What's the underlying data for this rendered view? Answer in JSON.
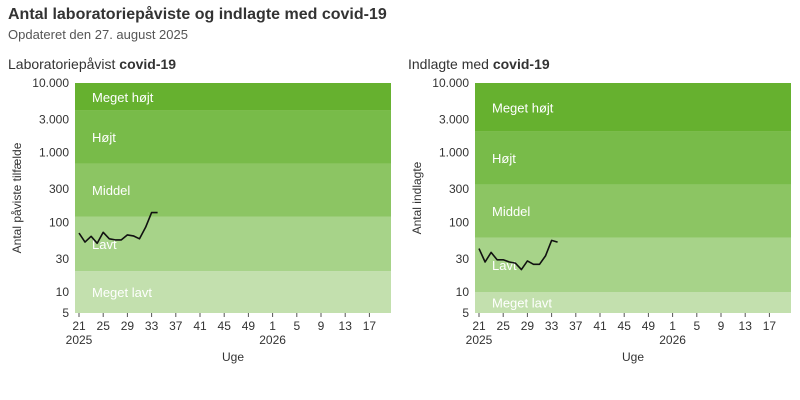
{
  "page": {
    "title": "Antal laboratoriepåviste og indlagte med covid-19",
    "subtitle": "Opdateret den 27. august 2025"
  },
  "colors": {
    "band_meget_hojt": "#66b12f",
    "band_hojt": "#78bb49",
    "band_middel": "#8cc563",
    "band_lavt": "#a7d389",
    "band_meget_lavt": "#c3e0ae",
    "line": "#111111",
    "band_text": "#ffffff"
  },
  "chart_data": [
    {
      "type": "line",
      "title_prefix": "Laboratoriepåvist ",
      "title_bold": "covid-19",
      "xlabel": "Uge",
      "ylabel": "Antal påviste tilfælde",
      "y_scale": "log",
      "ylim": [
        5,
        10000
      ],
      "y_ticks": [
        5,
        10,
        30,
        100,
        300,
        1000,
        3000,
        10000
      ],
      "y_tick_labels": [
        "5",
        "10",
        "30",
        "100",
        "300",
        "1.000",
        "3.000",
        "10.000"
      ],
      "x_ticks": [
        "21",
        "25",
        "29",
        "33",
        "37",
        "41",
        "45",
        "49",
        "1",
        "5",
        "9",
        "13",
        "17"
      ],
      "x_year_labels": [
        {
          "at": "21",
          "label": "2025"
        },
        {
          "at": "1",
          "label": "2026"
        }
      ],
      "bands": [
        {
          "label": "Meget lavt",
          "from": 5,
          "to": 20
        },
        {
          "label": "Lavt",
          "from": 20,
          "to": 120
        },
        {
          "label": "Middel",
          "from": 120,
          "to": 700
        },
        {
          "label": "Højt",
          "from": 700,
          "to": 4000
        },
        {
          "label": "Meget højt",
          "from": 4000,
          "to": 10000
        }
      ],
      "series": [
        {
          "x": [
            21,
            22,
            23,
            24,
            25,
            26,
            27,
            28,
            29,
            30,
            31,
            32,
            33,
            34
          ],
          "y": [
            70,
            52,
            63,
            50,
            72,
            58,
            56,
            56,
            66,
            64,
            58,
            85,
            138,
            138
          ]
        }
      ]
    },
    {
      "type": "line",
      "title_prefix": "Indlagte med ",
      "title_bold": "covid-19",
      "xlabel": "Uge",
      "ylabel": "Antal indlagte",
      "y_scale": "log",
      "ylim": [
        5,
        10000
      ],
      "y_ticks": [
        5,
        10,
        30,
        100,
        300,
        1000,
        3000,
        10000
      ],
      "y_tick_labels": [
        "5",
        "10",
        "30",
        "100",
        "300",
        "1.000",
        "3.000",
        "10.000"
      ],
      "x_ticks": [
        "21",
        "25",
        "29",
        "33",
        "37",
        "41",
        "45",
        "49",
        "1",
        "5",
        "9",
        "13",
        "17"
      ],
      "x_year_labels": [
        {
          "at": "21",
          "label": "2025"
        },
        {
          "at": "1",
          "label": "2026"
        }
      ],
      "bands": [
        {
          "label": "Meget lavt",
          "from": 5,
          "to": 10
        },
        {
          "label": "Lavt",
          "from": 10,
          "to": 60
        },
        {
          "label": "Middel",
          "from": 60,
          "to": 350
        },
        {
          "label": "Højt",
          "from": 350,
          "to": 2000
        },
        {
          "label": "Meget højt",
          "from": 2000,
          "to": 10000
        }
      ],
      "series": [
        {
          "x": [
            21,
            22,
            23,
            24,
            25,
            26,
            27,
            28,
            29,
            30,
            31,
            32,
            33,
            34
          ],
          "y": [
            42,
            27,
            37,
            29,
            29,
            27,
            26,
            21,
            28,
            25,
            25,
            33,
            55,
            52
          ]
        }
      ]
    }
  ]
}
